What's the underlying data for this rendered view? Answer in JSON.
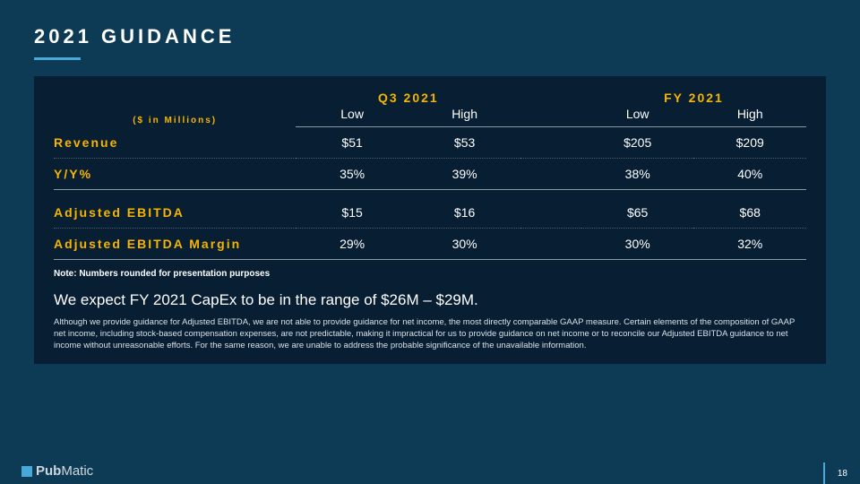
{
  "title": "2021 GUIDANCE",
  "units_label": "($ in Millions)",
  "group_headers": [
    "Q3 2021",
    "FY 2021"
  ],
  "sub_headers": [
    "Low",
    "High",
    "Low",
    "High"
  ],
  "table": {
    "rows": [
      {
        "label": "Revenue",
        "vals": [
          "$51",
          "$53",
          "$205",
          "$209"
        ],
        "border": "dotted"
      },
      {
        "label": "Y/Y%",
        "vals": [
          "35%",
          "39%",
          "38%",
          "40%"
        ],
        "border": "solid"
      },
      {
        "label": "Adjusted EBITDA",
        "vals": [
          "$15",
          "$16",
          "$65",
          "$68"
        ],
        "border": "dotted",
        "gap_before": true
      },
      {
        "label": "Adjusted EBITDA Margin",
        "vals": [
          "29%",
          "30%",
          "30%",
          "32%"
        ],
        "border": "solid"
      }
    ]
  },
  "note": "Note: Numbers rounded for presentation purposes",
  "capex": "We expect FY 2021 CapEx to be in the range of $26M – $29M.",
  "disclaimer": "Although we provide guidance for Adjusted EBITDA, we are not able to provide guidance for net income, the most directly comparable GAAP measure. Certain elements of the composition of GAAP net income, including stock-based compensation expenses, are not predictable, making it impractical for us to provide guidance on net income or to reconcile our Adjusted EBITDA guidance to net income without unreasonable efforts. For the same reason, we are unable to address the probable significance of the unavailable information.",
  "logo": {
    "bold": "Pub",
    "light": "Matic"
  },
  "page_number": "18",
  "colors": {
    "slide_bg": "#0d3a54",
    "panel_bg": "#071e33",
    "accent": "#4aa8d8",
    "highlight": "#f7b500",
    "text": "#ffffff"
  }
}
